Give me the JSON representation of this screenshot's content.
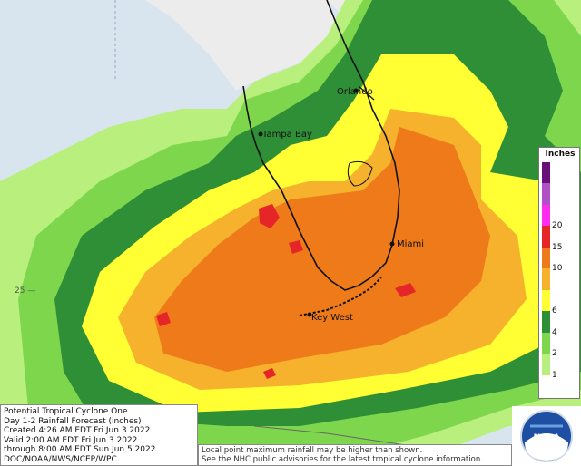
{
  "map": {
    "cities": [
      {
        "name": "Orlando",
        "label": "Orlando"
      },
      {
        "name": "Tampa Bay",
        "label": "Tampa Bay"
      },
      {
        "name": "Miami",
        "label": "Miami"
      },
      {
        "name": "Key West",
        "label": "Key West"
      }
    ],
    "latitude_label": "25 —"
  },
  "legend": {
    "title": "Inches",
    "bins": [
      {
        "label": "1",
        "color": "#b9f07d"
      },
      {
        "label": "2",
        "color": "#7ed64d"
      },
      {
        "label": "4",
        "color": "#2f8f37"
      },
      {
        "label": "6",
        "color": "#ffff33"
      },
      {
        "label": "",
        "color": "#f6b12d"
      },
      {
        "label": "10",
        "color": "#ee7a1a"
      },
      {
        "label": "15",
        "color": "#e52528"
      },
      {
        "label": "20",
        "color": "#ff2cf0"
      },
      {
        "label": "",
        "color": "#b14fc7"
      },
      {
        "label": "",
        "color": "#6a0f7a"
      }
    ],
    "below_color": "#ffffff"
  },
  "info": {
    "line1": "Potential Tropical Cyclone One",
    "line2": "Day 1-2 Rainfall Forecast (inches)",
    "line3": "Created 4:26 AM EDT Fri Jun 3 2022",
    "line4": "Valid 2:00 AM EDT Fri Jun 3 2022",
    "line5": "through 8:00 AM EDT Sun Jun 5 2022",
    "line6": "DOC/NOAA/NWS/NCEP/WPC"
  },
  "disclaimer": {
    "line1": "Local point maximum rainfall may be higher than shown.",
    "line2": "See the NHC public advisories for the latest tropical cyclone information."
  },
  "logo": {
    "text": "NOAA",
    "icon": "noaa-logo-icon"
  }
}
